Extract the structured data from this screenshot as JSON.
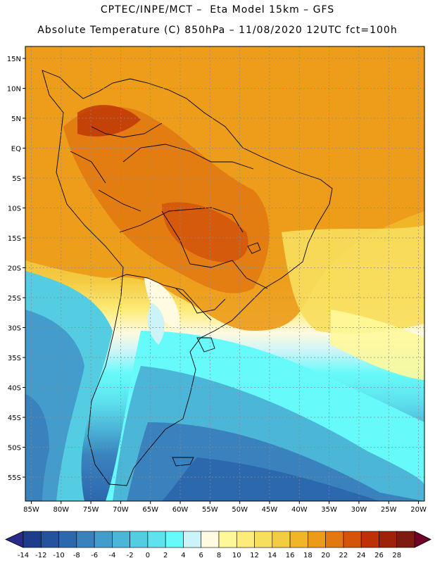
{
  "title": {
    "line1": "CPTEC/INPE/MCT –  Eta Model 15km – GFS",
    "line2": "Absolute Temperature (C) 850hPa – 11/08/2020 12UTC fct=100h"
  },
  "map": {
    "lat_ticks": [
      {
        "value": 15,
        "label": "15N"
      },
      {
        "value": 10,
        "label": "10N"
      },
      {
        "value": 5,
        "label": "5N"
      },
      {
        "value": 0,
        "label": "EQ"
      },
      {
        "value": -5,
        "label": "5S"
      },
      {
        "value": -10,
        "label": "10S"
      },
      {
        "value": -15,
        "label": "15S"
      },
      {
        "value": -20,
        "label": "20S"
      },
      {
        "value": -25,
        "label": "25S"
      },
      {
        "value": -30,
        "label": "30S"
      },
      {
        "value": -35,
        "label": "35S"
      },
      {
        "value": -40,
        "label": "40S"
      },
      {
        "value": -45,
        "label": "45S"
      },
      {
        "value": -50,
        "label": "50S"
      },
      {
        "value": -55,
        "label": "55S"
      }
    ],
    "lon_ticks": [
      {
        "value": -85,
        "label": "85W"
      },
      {
        "value": -80,
        "label": "80W"
      },
      {
        "value": -75,
        "label": "75W"
      },
      {
        "value": -70,
        "label": "70W"
      },
      {
        "value": -65,
        "label": "65W"
      },
      {
        "value": -60,
        "label": "60W"
      },
      {
        "value": -55,
        "label": "55W"
      },
      {
        "value": -50,
        "label": "50W"
      },
      {
        "value": -45,
        "label": "45W"
      },
      {
        "value": -40,
        "label": "40W"
      },
      {
        "value": -35,
        "label": "35W"
      },
      {
        "value": -30,
        "label": "30W"
      },
      {
        "value": -25,
        "label": "25W"
      },
      {
        "value": -20,
        "label": "20W"
      }
    ],
    "lon_range": [
      -86,
      -19
    ],
    "lat_range": [
      -59,
      17
    ]
  },
  "colorbar": {
    "levels": [
      {
        "label": "-14",
        "color": "#1e3c8c"
      },
      {
        "label": "-12",
        "color": "#24529e"
      },
      {
        "label": "-10",
        "color": "#2c68ae"
      },
      {
        "label": "-8",
        "color": "#3a82be"
      },
      {
        "label": "-6",
        "color": "#449ccc"
      },
      {
        "label": "-4",
        "color": "#4cb6d8"
      },
      {
        "label": "-2",
        "color": "#54cce2"
      },
      {
        "label": "0",
        "color": "#5ee2ee"
      },
      {
        "label": "2",
        "color": "#66fafa"
      },
      {
        "label": "4",
        "color": "#ccf4f8"
      },
      {
        "label": "6",
        "color": "#fffae0"
      },
      {
        "label": "8",
        "color": "#fff89a"
      },
      {
        "label": "10",
        "color": "#fdec7a"
      },
      {
        "label": "12",
        "color": "#f8de5e"
      },
      {
        "label": "14",
        "color": "#f4cc44"
      },
      {
        "label": "16",
        "color": "#f0b628"
      },
      {
        "label": "18",
        "color": "#ec9a18"
      },
      {
        "label": "20",
        "color": "#e27810"
      },
      {
        "label": "22",
        "color": "#d4540a"
      },
      {
        "label": "24",
        "color": "#bc3206"
      },
      {
        "label": "26",
        "color": "#9e2208"
      },
      {
        "label": "28",
        "color": "#7e1a10"
      }
    ],
    "low_color": "#2a2a8a",
    "high_color": "#700028"
  }
}
